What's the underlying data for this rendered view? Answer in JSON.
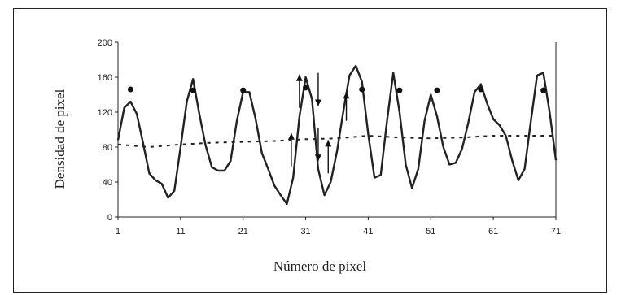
{
  "chart_data": {
    "type": "line",
    "title": "",
    "xlabel": "Número de pixel",
    "ylabel": "Densidad de pixel",
    "xlim": [
      1,
      71
    ],
    "ylim": [
      0,
      200
    ],
    "xticks": [
      "1",
      "11",
      "21",
      "31",
      "41",
      "51",
      "61",
      "71"
    ],
    "yticks": [
      "0",
      "40",
      "80",
      "120",
      "160",
      "200"
    ],
    "grid": false,
    "legend": "none",
    "series": [
      {
        "style": "solid",
        "x": [
          1,
          2,
          3,
          4,
          5,
          6,
          7,
          8,
          9,
          10,
          11,
          12,
          13,
          14,
          15,
          16,
          17,
          18,
          19,
          20,
          21,
          22,
          23,
          24,
          25,
          26,
          27,
          28,
          29,
          30,
          31,
          32,
          33,
          34,
          35,
          36,
          37,
          38,
          39,
          40,
          41,
          42,
          43,
          44,
          45,
          46,
          47,
          48,
          49,
          50,
          51,
          52,
          53,
          54,
          55,
          56,
          57,
          58,
          59,
          60,
          61,
          62,
          63,
          64,
          65,
          66,
          67,
          68,
          69,
          70,
          71
        ],
        "y": [
          88,
          125,
          132,
          118,
          85,
          50,
          42,
          38,
          22,
          30,
          80,
          132,
          158,
          118,
          82,
          57,
          53,
          53,
          64,
          110,
          143,
          143,
          112,
          73,
          55,
          36,
          25,
          15,
          45,
          115,
          160,
          135,
          55,
          25,
          40,
          75,
          120,
          162,
          173,
          155,
          95,
          45,
          48,
          110,
          165,
          120,
          60,
          33,
          55,
          110,
          140,
          115,
          80,
          60,
          62,
          78,
          108,
          143,
          152,
          130,
          112,
          105,
          93,
          65,
          42,
          55,
          110,
          162,
          165,
          120,
          65
        ]
      },
      {
        "style": "dashed",
        "x": [
          1,
          6,
          11,
          16,
          21,
          26,
          31,
          36,
          41,
          46,
          51,
          56,
          61,
          66,
          71
        ],
        "y": [
          83,
          80,
          83,
          85,
          86,
          87,
          89,
          90,
          93,
          91,
          90,
          91,
          93,
          93,
          93
        ]
      }
    ],
    "markers": {
      "dots": [
        {
          "x": 3,
          "y": 146
        },
        {
          "x": 13,
          "y": 145
        },
        {
          "x": 21,
          "y": 145
        },
        {
          "x": 31,
          "y": 148
        },
        {
          "x": 40,
          "y": 146
        },
        {
          "x": 46,
          "y": 145
        },
        {
          "x": 52,
          "y": 145
        },
        {
          "x": 59,
          "y": 146
        },
        {
          "x": 69,
          "y": 145
        }
      ],
      "arrows": [
        {
          "direction": "up",
          "x": 28.7,
          "y_from": 58,
          "y_to": 96
        },
        {
          "direction": "up",
          "x": 30.0,
          "y_from": 125,
          "y_to": 163
        },
        {
          "direction": "down",
          "x": 33.0,
          "y_from": 165,
          "y_to": 127
        },
        {
          "direction": "down",
          "x": 33.0,
          "y_from": 102,
          "y_to": 64
        },
        {
          "direction": "up",
          "x": 34.6,
          "y_from": 50,
          "y_to": 88
        },
        {
          "direction": "up",
          "x": 37.5,
          "y_from": 110,
          "y_to": 143
        }
      ]
    }
  }
}
